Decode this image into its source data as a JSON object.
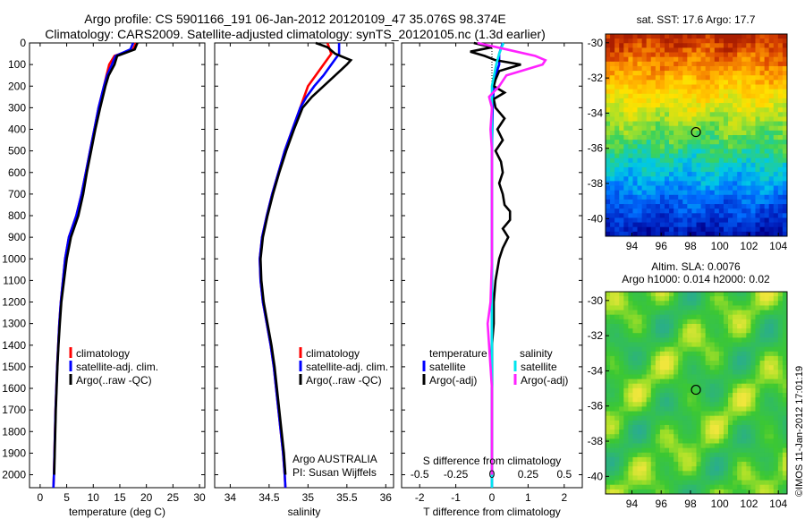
{
  "header": {
    "title_line1": "Argo profile: CS 5901166_191 06-Jan-2012 20120109_47 35.076S 98.374E",
    "title_line2": "Climatology: CARS2009. Satellite-adjusted climatology: synTS_20120105.nc (1.3d earlier)"
  },
  "credit": "©IMOS 11-Jan-2012 17:01:19",
  "colors": {
    "climatology": "#ff0000",
    "satellite": "#0000ff",
    "argo": "#000000",
    "sat_diff_s": "#00e5ee",
    "argo_diff_s": "#ff22ff"
  },
  "chart_data": [
    {
      "type": "line",
      "id": "temperature",
      "xlabel": "temperature (deg C)",
      "ylabel": "",
      "xlim": [
        -2,
        31
      ],
      "ylim": [
        2060,
        0
      ],
      "xticks": [
        "0",
        "5",
        "10",
        "15",
        "20",
        "25",
        "30"
      ],
      "xtick_values": [
        0,
        5,
        10,
        15,
        20,
        25,
        30
      ],
      "yticks": [
        "0",
        "100",
        "200",
        "300",
        "400",
        "500",
        "600",
        "700",
        "800",
        "900",
        "1000",
        "1100",
        "1200",
        "1300",
        "1400",
        "1500",
        "1600",
        "1700",
        "1800",
        "1900",
        "2000"
      ],
      "legend": [
        "climatology",
        "satellite-adj. clim.",
        "Argo(..raw -QC)"
      ],
      "series": [
        {
          "name": "climatology",
          "depth": [
            0,
            30,
            60,
            100,
            150,
            200,
            300,
            400,
            500,
            600,
            700,
            800,
            900,
            1000,
            1100,
            1200,
            1300,
            1400,
            1500,
            1600,
            1700,
            1800,
            1900,
            2000,
            2060
          ],
          "values": [
            18,
            17.5,
            14,
            13,
            12.5,
            12,
            11,
            10.2,
            9.4,
            8.6,
            7.8,
            6.8,
            5.4,
            4.7,
            4.3,
            3.9,
            3.6,
            3.4,
            3.2,
            3.05,
            2.9,
            2.8,
            2.7,
            2.6,
            2.5
          ]
        },
        {
          "name": "satellite-adj. clim.",
          "depth": [
            0,
            30,
            60,
            100,
            150,
            200,
            300,
            400,
            500,
            600,
            700,
            800,
            900,
            1000,
            1100,
            1200,
            1300,
            1400,
            1500,
            1600,
            1700,
            1800,
            1900,
            2000,
            2060
          ],
          "values": [
            17.5,
            17,
            14.2,
            13.5,
            12.6,
            12,
            11,
            10.2,
            9.4,
            8.6,
            7.8,
            6.8,
            5.4,
            4.7,
            4.3,
            3.9,
            3.6,
            3.4,
            3.2,
            3.05,
            2.9,
            2.8,
            2.7,
            2.6,
            2.5
          ]
        },
        {
          "name": "Argo(..raw -QC)",
          "depth": [
            0,
            30,
            60,
            100,
            150,
            200,
            300,
            400,
            500,
            600,
            700,
            800,
            900,
            1000,
            1100,
            1200,
            1300,
            1400,
            1500,
            1600,
            1700,
            1800,
            1900,
            2000
          ],
          "values": [
            18.3,
            17.8,
            14.5,
            14,
            12.9,
            12.3,
            11.3,
            10.4,
            9.6,
            8.8,
            8.1,
            7.2,
            5.8,
            5,
            4.5,
            4,
            3.7,
            3.45,
            3.25,
            3.1,
            2.95,
            2.85,
            2.75,
            2.65
          ]
        }
      ]
    },
    {
      "type": "line",
      "id": "salinity",
      "xlabel": "salinity",
      "xlim": [
        33.8,
        36.1
      ],
      "ylim": [
        2060,
        0
      ],
      "xticks": [
        "34",
        "34.5",
        "35",
        "35.5",
        "36"
      ],
      "xtick_values": [
        34,
        34.5,
        35,
        35.5,
        36
      ],
      "legend": [
        "climatology",
        "satellite-adj. clim.",
        "Argo(..raw -QC)"
      ],
      "annotation": [
        "Argo AUSTRALIA",
        "PI: Susan Wijffels"
      ],
      "series": [
        {
          "name": "climatology",
          "depth": [
            0,
            50,
            100,
            150,
            200,
            250,
            300,
            400,
            500,
            600,
            700,
            800,
            900,
            1000,
            1100,
            1200,
            1300,
            1400,
            1500,
            1600,
            1700,
            1800,
            1900,
            2000,
            2060
          ],
          "values": [
            35.25,
            35.3,
            35.2,
            35.1,
            35.0,
            34.95,
            34.9,
            34.8,
            34.7,
            34.62,
            34.54,
            34.47,
            34.41,
            34.38,
            34.39,
            34.42,
            34.47,
            34.52,
            34.56,
            34.59,
            34.62,
            34.65,
            34.68,
            34.7,
            34.71
          ]
        },
        {
          "name": "satellite-adj. clim.",
          "depth": [
            0,
            50,
            100,
            150,
            200,
            250,
            300,
            400,
            500,
            600,
            700,
            800,
            900,
            1000,
            1100,
            1200,
            1300,
            1400,
            1500,
            1600,
            1700,
            1800,
            1900,
            2000,
            2060
          ],
          "values": [
            35.4,
            35.4,
            35.3,
            35.2,
            35.08,
            34.98,
            34.9,
            34.8,
            34.7,
            34.62,
            34.54,
            34.47,
            34.41,
            34.38,
            34.39,
            34.42,
            34.47,
            34.52,
            34.56,
            34.59,
            34.62,
            34.65,
            34.68,
            34.7,
            34.71
          ]
        },
        {
          "name": "Argo(..raw -QC)",
          "depth": [
            0,
            20,
            50,
            80,
            100,
            150,
            200,
            250,
            300,
            400,
            500,
            600,
            700,
            800,
            900,
            1000,
            1100,
            1200,
            1300,
            1400,
            1500,
            1600,
            1700,
            1800,
            1900,
            2000
          ],
          "values": [
            35.1,
            35.25,
            35.35,
            35.55,
            35.5,
            35.35,
            35.2,
            35.05,
            34.93,
            34.82,
            34.72,
            34.63,
            34.55,
            34.48,
            34.42,
            34.39,
            34.4,
            34.43,
            34.48,
            34.53,
            34.57,
            34.6,
            34.63,
            34.66,
            34.69,
            34.71
          ]
        }
      ]
    },
    {
      "type": "line",
      "id": "difference",
      "xlabel": "T difference from climatology",
      "xlabel_top": "S difference from climatology",
      "xlim": [
        -2.5,
        2.5
      ],
      "ylim": [
        2060,
        0
      ],
      "xticks": [
        "-2",
        "-1",
        "0",
        "1",
        "2"
      ],
      "xtick_values": [
        -2,
        -1,
        0,
        1,
        2
      ],
      "xticks_top": [
        "-0.5",
        "-0.25",
        "0",
        "0.25",
        "0.5"
      ],
      "legend_headers": [
        "temperature",
        "salinity"
      ],
      "legend": [
        "satellite",
        "Argo(-adj)",
        "satellite",
        "Argo(-adj)"
      ],
      "series": [
        {
          "name": "temperature satellite",
          "depth": [
            0,
            50,
            100,
            150,
            200,
            300,
            400,
            500,
            700,
            900,
            1100,
            1300,
            1500,
            1700,
            1900,
            2060
          ],
          "values": [
            0.3,
            0.2,
            0.2,
            0.1,
            0.05,
            0.02,
            0.01,
            0,
            0,
            0,
            0,
            0,
            0,
            0,
            0,
            0
          ]
        },
        {
          "name": "temperature Argo(-adj)",
          "depth": [
            0,
            20,
            40,
            60,
            80,
            100,
            130,
            170,
            200,
            230,
            260,
            300,
            350,
            400,
            450,
            500,
            550,
            600,
            650,
            700,
            750,
            780,
            820,
            860,
            900,
            950,
            1000,
            1100,
            1200,
            1300,
            1400,
            1500,
            1600,
            1700,
            1800,
            1900,
            2000
          ],
          "values": [
            -0.5,
            0,
            -0.6,
            -0.2,
            0.1,
            0.8,
            0.2,
            0.1,
            0.05,
            0.35,
            0.05,
            0.1,
            0.35,
            0.15,
            0.3,
            0.1,
            0.25,
            0.3,
            0.2,
            0.3,
            0.35,
            0.5,
            0.5,
            0.3,
            0.45,
            0.3,
            0.2,
            0.1,
            0.05,
            0.05,
            0,
            0,
            0,
            0,
            0,
            0,
            0
          ]
        },
        {
          "name": "salinity satellite",
          "depth": [
            0,
            50,
            100,
            200,
            300,
            400,
            500,
            700,
            900,
            1100,
            1300,
            1500,
            1700,
            1900,
            2060
          ],
          "values": [
            0.08,
            0.05,
            0.03,
            0.0,
            0.0,
            0.0,
            0.0,
            0.0,
            0.0,
            0.0,
            0.0,
            0.0,
            0.0,
            0.0,
            0.0
          ]
        },
        {
          "name": "salinity Argo(-adj)",
          "depth": [
            0,
            30,
            60,
            80,
            100,
            150,
            200,
            250,
            300,
            400,
            500,
            600,
            800,
            1000,
            1200,
            1300,
            1400,
            1500,
            1600,
            1700,
            1800,
            1900,
            2000
          ],
          "values": [
            -0.1,
            0.1,
            0.3,
            0.37,
            0.35,
            0.1,
            0.05,
            -0.02,
            0.0,
            -0.01,
            0.0,
            0.0,
            0.0,
            0.0,
            -0.01,
            -0.03,
            -0.02,
            -0.01,
            0.0,
            0.0,
            0.0,
            0.0,
            0.0
          ]
        }
      ]
    },
    {
      "type": "heatmap",
      "id": "sst-map",
      "title": "sat. SST: 17.6 Argo: 17.7",
      "xlim": [
        92.2,
        104.6
      ],
      "ylim": [
        -41,
        -29.5
      ],
      "xticks": [
        "94",
        "96",
        "98",
        "100",
        "102",
        "104"
      ],
      "yticks": [
        "-30",
        "-32",
        "-34",
        "-36",
        "-38",
        "-40"
      ],
      "marker": [
        98.374,
        -35.076
      ]
    },
    {
      "type": "heatmap",
      "id": "sla-map",
      "title": "Altim. SLA: 0.0076",
      "subtitle": "Argo h1000: 0.014 h2000: 0.02",
      "xlim": [
        92.2,
        104.6
      ],
      "ylim": [
        -41,
        -29.5
      ],
      "xticks": [
        "94",
        "96",
        "98",
        "100",
        "102",
        "104"
      ],
      "yticks": [
        "-30",
        "-32",
        "-34",
        "-36",
        "-38",
        "-40"
      ],
      "marker": [
        98.374,
        -35.076
      ]
    }
  ]
}
